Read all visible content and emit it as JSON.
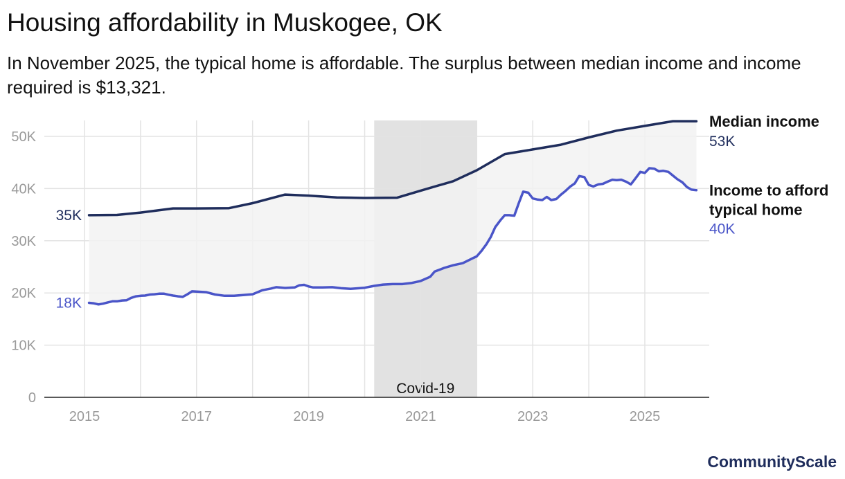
{
  "title": "Housing affordability in Muskogee, OK",
  "subtitle": "In November 2025, the typical home is affordable. The surplus between median income and income required is $13,321.",
  "brand": "CommunityScale",
  "colors": {
    "income": "#1f2d5c",
    "afford": "#4a55c8",
    "shade": "#f2f2f2",
    "covid": "#e2e2e2",
    "grid": "#e3e3e3",
    "axis": "#222222"
  },
  "chart_data": {
    "type": "line",
    "ylim": [
      0,
      53000
    ],
    "xlim": [
      2014.75,
      2026.1
    ],
    "y_ticks": [
      {
        "value": 0,
        "label": "0"
      },
      {
        "value": 10000,
        "label": "10K"
      },
      {
        "value": 20000,
        "label": "20K"
      },
      {
        "value": 30000,
        "label": "30K"
      },
      {
        "value": 40000,
        "label": "40K"
      },
      {
        "value": 50000,
        "label": "50K"
      }
    ],
    "x_ticks": [
      {
        "value": 2015,
        "label": "2015"
      },
      {
        "value": 2017,
        "label": "2017"
      },
      {
        "value": 2019,
        "label": "2019"
      },
      {
        "value": 2021,
        "label": "2021"
      },
      {
        "value": 2023,
        "label": "2023"
      },
      {
        "value": 2025,
        "label": "2025"
      }
    ],
    "x_gridlines": [
      2015,
      2016,
      2017,
      2018,
      2019,
      2020,
      2021,
      2022,
      2023,
      2024,
      2025
    ],
    "annotation": {
      "label": "Covid-19",
      "start": 2020.17,
      "end": 2022.0
    },
    "series": [
      {
        "name": "Median income",
        "legend_line1": "Median income",
        "legend_line2": "",
        "start_label": "35K",
        "end_label": "53K",
        "points": [
          [
            2015.08,
            34900
          ],
          [
            2015.58,
            34950
          ],
          [
            2016.0,
            35400
          ],
          [
            2016.58,
            36200
          ],
          [
            2017.0,
            36200
          ],
          [
            2017.58,
            36250
          ],
          [
            2018.0,
            37200
          ],
          [
            2018.58,
            38850
          ],
          [
            2019.0,
            38650
          ],
          [
            2019.5,
            38300
          ],
          [
            2020.0,
            38200
          ],
          [
            2020.58,
            38250
          ],
          [
            2021.0,
            39600
          ],
          [
            2021.58,
            41400
          ],
          [
            2022.0,
            43500
          ],
          [
            2022.5,
            46600
          ],
          [
            2023.0,
            47500
          ],
          [
            2023.5,
            48400
          ],
          [
            2024.0,
            49800
          ],
          [
            2024.5,
            51100
          ],
          [
            2025.0,
            52000
          ],
          [
            2025.5,
            52900
          ],
          [
            2025.92,
            52900
          ]
        ]
      },
      {
        "name": "Income to afford typical home",
        "legend_line1": "Income to afford",
        "legend_line2": "typical home",
        "start_label": "18K",
        "end_label": "40K",
        "points": [
          [
            2015.08,
            18100
          ],
          [
            2015.17,
            18000
          ],
          [
            2015.25,
            17800
          ],
          [
            2015.33,
            17950
          ],
          [
            2015.42,
            18200
          ],
          [
            2015.5,
            18400
          ],
          [
            2015.58,
            18400
          ],
          [
            2015.67,
            18550
          ],
          [
            2015.75,
            18600
          ],
          [
            2015.83,
            19050
          ],
          [
            2015.92,
            19350
          ],
          [
            2016.0,
            19450
          ],
          [
            2016.08,
            19500
          ],
          [
            2016.17,
            19700
          ],
          [
            2016.25,
            19750
          ],
          [
            2016.33,
            19850
          ],
          [
            2016.42,
            19850
          ],
          [
            2016.5,
            19650
          ],
          [
            2016.58,
            19500
          ],
          [
            2016.67,
            19350
          ],
          [
            2016.75,
            19250
          ],
          [
            2016.83,
            19700
          ],
          [
            2016.92,
            20300
          ],
          [
            2017.0,
            20250
          ],
          [
            2017.17,
            20150
          ],
          [
            2017.33,
            19700
          ],
          [
            2017.5,
            19450
          ],
          [
            2017.67,
            19450
          ],
          [
            2017.83,
            19600
          ],
          [
            2018.0,
            19750
          ],
          [
            2018.17,
            20500
          ],
          [
            2018.33,
            20850
          ],
          [
            2018.42,
            21100
          ],
          [
            2018.58,
            20950
          ],
          [
            2018.75,
            21050
          ],
          [
            2018.83,
            21450
          ],
          [
            2018.92,
            21550
          ],
          [
            2019.0,
            21250
          ],
          [
            2019.08,
            21050
          ],
          [
            2019.25,
            21050
          ],
          [
            2019.42,
            21100
          ],
          [
            2019.58,
            20900
          ],
          [
            2019.75,
            20800
          ],
          [
            2020.0,
            21000
          ],
          [
            2020.17,
            21350
          ],
          [
            2020.33,
            21600
          ],
          [
            2020.5,
            21700
          ],
          [
            2020.67,
            21700
          ],
          [
            2020.83,
            21900
          ],
          [
            2021.0,
            22300
          ],
          [
            2021.17,
            23100
          ],
          [
            2021.25,
            24100
          ],
          [
            2021.42,
            24800
          ],
          [
            2021.58,
            25300
          ],
          [
            2021.75,
            25700
          ],
          [
            2021.92,
            26600
          ],
          [
            2022.0,
            27000
          ],
          [
            2022.08,
            28000
          ],
          [
            2022.17,
            29300
          ],
          [
            2022.25,
            30700
          ],
          [
            2022.33,
            32600
          ],
          [
            2022.42,
            33900
          ],
          [
            2022.5,
            34900
          ],
          [
            2022.58,
            34900
          ],
          [
            2022.67,
            34800
          ],
          [
            2022.75,
            37200
          ],
          [
            2022.83,
            39400
          ],
          [
            2022.92,
            39200
          ],
          [
            2023.0,
            38100
          ],
          [
            2023.08,
            37900
          ],
          [
            2023.17,
            37800
          ],
          [
            2023.25,
            38400
          ],
          [
            2023.33,
            37800
          ],
          [
            2023.42,
            38000
          ],
          [
            2023.5,
            38800
          ],
          [
            2023.58,
            39500
          ],
          [
            2023.67,
            40400
          ],
          [
            2023.75,
            41000
          ],
          [
            2023.83,
            42400
          ],
          [
            2023.92,
            42200
          ],
          [
            2024.0,
            40700
          ],
          [
            2024.08,
            40400
          ],
          [
            2024.17,
            40800
          ],
          [
            2024.25,
            40900
          ],
          [
            2024.33,
            41300
          ],
          [
            2024.42,
            41700
          ],
          [
            2024.5,
            41600
          ],
          [
            2024.58,
            41700
          ],
          [
            2024.67,
            41300
          ],
          [
            2024.75,
            40800
          ],
          [
            2024.83,
            41900
          ],
          [
            2024.92,
            43200
          ],
          [
            2025.0,
            43000
          ],
          [
            2025.08,
            43900
          ],
          [
            2025.17,
            43800
          ],
          [
            2025.25,
            43300
          ],
          [
            2025.33,
            43400
          ],
          [
            2025.42,
            43200
          ],
          [
            2025.5,
            42500
          ],
          [
            2025.58,
            41800
          ],
          [
            2025.67,
            41200
          ],
          [
            2025.75,
            40300
          ],
          [
            2025.83,
            39800
          ],
          [
            2025.92,
            39700
          ]
        ]
      }
    ]
  }
}
